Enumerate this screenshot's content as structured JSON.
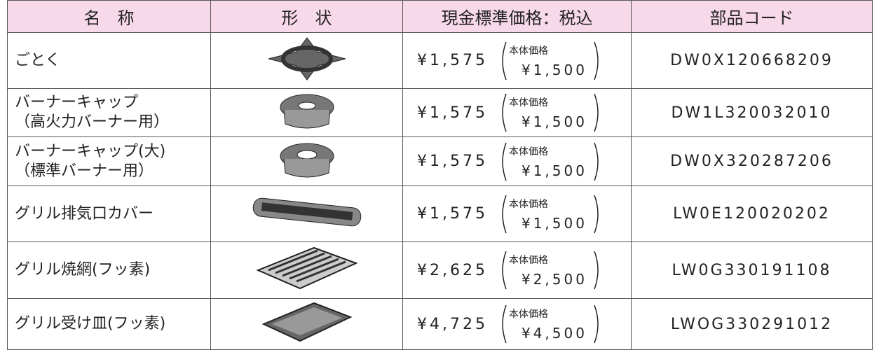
{
  "table": {
    "header": [
      "名　称",
      "形　状",
      "現金標準価格：税込",
      "部品コード"
    ],
    "rows": [
      {
        "name": [
          "ごとく"
        ],
        "price": "¥1,575",
        "body_label": "本体価格",
        "body_price": "¥1,500",
        "code": "DW0X120668209"
      },
      {
        "name": [
          "バーナーキャップ",
          "（高火力バーナー用）"
        ],
        "price": "¥1,575",
        "body_label": "本体価格",
        "body_price": "¥1,500",
        "code": "DW1L320032010"
      },
      {
        "name": [
          "バーナーキャップ(大)",
          "（標準バーナー用）"
        ],
        "price": "¥1,575",
        "body_label": "本体価格",
        "body_price": "¥1,500",
        "code": "DW0X320287206"
      },
      {
        "name": [
          "グリル排気口カバー"
        ],
        "price": "¥1,575",
        "body_label": "本体価格",
        "body_price": "¥1,500",
        "code": "LW0E120020202"
      },
      {
        "name": [
          "グリル焼網(フッ素)"
        ],
        "price": "¥2,625",
        "body_label": "本体価格",
        "body_price": "¥2,500",
        "code": "LW0G330191108"
      },
      {
        "name": [
          "グリル受け皿(フッ素)"
        ],
        "price": "¥4,725",
        "body_label": "本体価格",
        "body_price": "¥4,500",
        "code": "LWOG330291012"
      }
    ]
  }
}
